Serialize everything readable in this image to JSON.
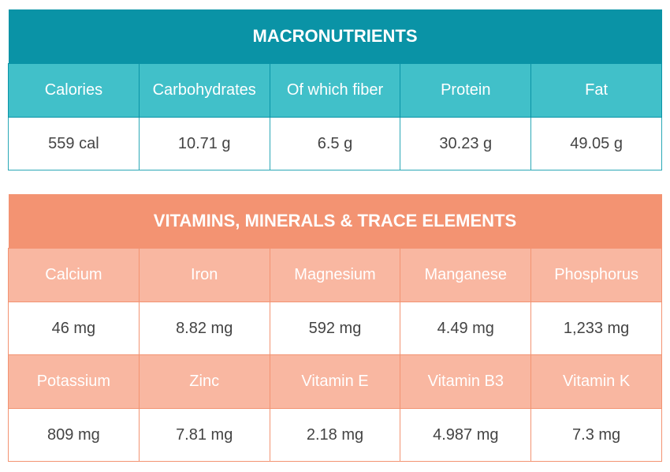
{
  "macronutrients": {
    "title": "MACRONUTRIENTS",
    "headers": [
      "Calories",
      "Carbohydrates",
      "Of which fiber",
      "Protein",
      "Fat"
    ],
    "values": [
      "559 cal",
      "10.71 g",
      "6.5 g",
      "30.23 g",
      "49.05 g"
    ]
  },
  "vitamins": {
    "title": "VITAMINS, MINERALS & TRACE ELEMENTS",
    "row1_headers": [
      "Calcium",
      "Iron",
      "Magnesium",
      "Manganese",
      "Phosphorus"
    ],
    "row1_values": [
      "46 mg",
      "8.82 mg",
      "592 mg",
      "4.49 mg",
      "1,233 mg"
    ],
    "row2_headers": [
      "Potassium",
      "Zinc",
      "Vitamin E",
      "Vitamin B3",
      "Vitamin K"
    ],
    "row2_values": [
      "809 mg",
      "7.81 mg",
      "2.18 mg",
      "4.987 mg",
      "7.3 mg"
    ]
  },
  "colors": {
    "teal_dark": "#0a93a6",
    "teal_light": "#41c0c9",
    "salmon_dark": "#f39372",
    "salmon_light": "#f9b7a1"
  }
}
